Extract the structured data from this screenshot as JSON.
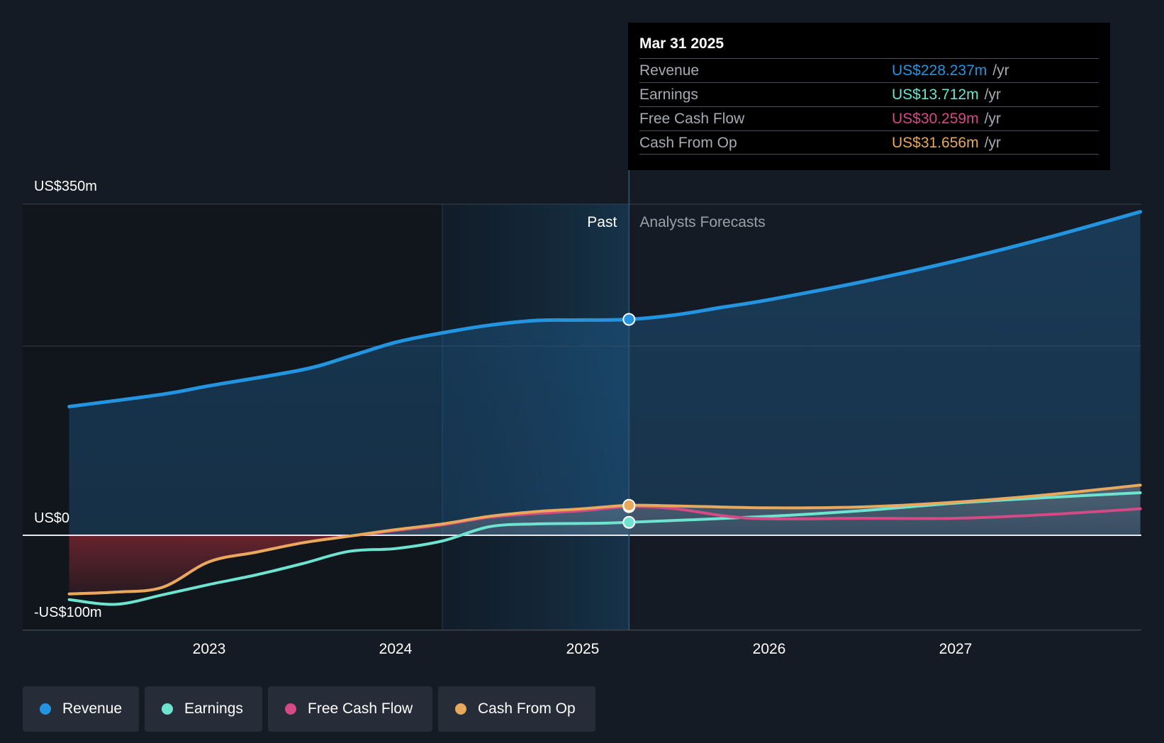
{
  "chart_data": {
    "type": "line",
    "y_axis": {
      "labels": [
        "US$350m",
        "US$0",
        "-US$100m"
      ],
      "ylim": [
        -100,
        350
      ],
      "gridlines": [
        350,
        200,
        0,
        -100
      ]
    },
    "x_axis": {
      "tick_labels": [
        "2023",
        "2024",
        "2025",
        "2026",
        "2027"
      ],
      "xlim": [
        2022.25,
        2027.99
      ]
    },
    "regions": {
      "past_label": "Past",
      "forecast_label": "Analysts Forecasts",
      "divider_x": 2025.25,
      "highlight_start": 2024.25
    },
    "series": [
      {
        "name": "Revenue",
        "color": "#2394e0",
        "points": [
          [
            2022.25,
            136
          ],
          [
            2022.75,
            149
          ],
          [
            2023.0,
            158
          ],
          [
            2023.5,
            175
          ],
          [
            2023.75,
            189
          ],
          [
            2024.0,
            204
          ],
          [
            2024.25,
            214
          ],
          [
            2024.5,
            222
          ],
          [
            2024.75,
            227
          ],
          [
            2025.0,
            227.5
          ],
          [
            2025.25,
            228.237
          ],
          [
            2025.5,
            233
          ],
          [
            2025.75,
            241
          ],
          [
            2026.0,
            249
          ],
          [
            2026.5,
            268
          ],
          [
            2027.0,
            290
          ],
          [
            2027.5,
            315
          ],
          [
            2027.99,
            342
          ]
        ]
      },
      {
        "name": "Earnings",
        "color": "#6ee4d0",
        "points": [
          [
            2022.25,
            -68
          ],
          [
            2022.5,
            -73
          ],
          [
            2022.75,
            -63
          ],
          [
            2023.0,
            -52
          ],
          [
            2023.25,
            -42
          ],
          [
            2023.5,
            -30
          ],
          [
            2023.75,
            -17
          ],
          [
            2024.0,
            -14
          ],
          [
            2024.25,
            -6
          ],
          [
            2024.5,
            9
          ],
          [
            2024.75,
            12
          ],
          [
            2025.0,
            12.5
          ],
          [
            2025.25,
            13.712
          ],
          [
            2026.0,
            20
          ],
          [
            2026.5,
            26
          ],
          [
            2027.0,
            34
          ],
          [
            2027.5,
            40
          ],
          [
            2027.99,
            45
          ]
        ]
      },
      {
        "name": "Free Cash Flow",
        "color": "#d44a85",
        "points": [
          [
            2022.25,
            -62
          ],
          [
            2022.5,
            -60
          ],
          [
            2022.75,
            -55
          ],
          [
            2023.0,
            -28
          ],
          [
            2023.25,
            -18
          ],
          [
            2023.5,
            -8
          ],
          [
            2023.75,
            -1
          ],
          [
            2024.0,
            5
          ],
          [
            2024.25,
            11
          ],
          [
            2024.5,
            19
          ],
          [
            2024.75,
            23
          ],
          [
            2025.0,
            26
          ],
          [
            2025.25,
            30.259
          ],
          [
            2025.5,
            28
          ],
          [
            2025.9,
            18
          ],
          [
            2026.5,
            18
          ],
          [
            2027.0,
            18
          ],
          [
            2027.5,
            22
          ],
          [
            2027.99,
            28
          ]
        ]
      },
      {
        "name": "Cash From Op",
        "color": "#e8a95a",
        "points": [
          [
            2022.25,
            -62
          ],
          [
            2022.5,
            -60
          ],
          [
            2022.75,
            -55
          ],
          [
            2023.0,
            -28
          ],
          [
            2023.25,
            -18
          ],
          [
            2023.5,
            -8
          ],
          [
            2023.75,
            -1
          ],
          [
            2024.0,
            6
          ],
          [
            2024.25,
            12
          ],
          [
            2024.5,
            20
          ],
          [
            2024.75,
            25
          ],
          [
            2025.0,
            28
          ],
          [
            2025.25,
            31.656
          ],
          [
            2025.5,
            31
          ],
          [
            2026.0,
            29
          ],
          [
            2026.5,
            30
          ],
          [
            2027.0,
            35
          ],
          [
            2027.5,
            43
          ],
          [
            2027.99,
            53
          ]
        ]
      }
    ]
  },
  "tooltip": {
    "date": "Mar 31 2025",
    "rows": [
      {
        "label": "Revenue",
        "value": "US$228.237m",
        "unit": "/yr",
        "color": "#2394e0"
      },
      {
        "label": "Earnings",
        "value": "US$13.712m",
        "unit": "/yr",
        "color": "#6ee4d0"
      },
      {
        "label": "Free Cash Flow",
        "value": "US$30.259m",
        "unit": "/yr",
        "color": "#d44a85"
      },
      {
        "label": "Cash From Op",
        "value": "US$31.656m",
        "unit": "/yr",
        "color": "#e8a95a"
      }
    ]
  },
  "legend": [
    {
      "label": "Revenue",
      "color": "#2394e0"
    },
    {
      "label": "Earnings",
      "color": "#6ee4d0"
    },
    {
      "label": "Free Cash Flow",
      "color": "#d44a85"
    },
    {
      "label": "Cash From Op",
      "color": "#e8a95a"
    }
  ]
}
